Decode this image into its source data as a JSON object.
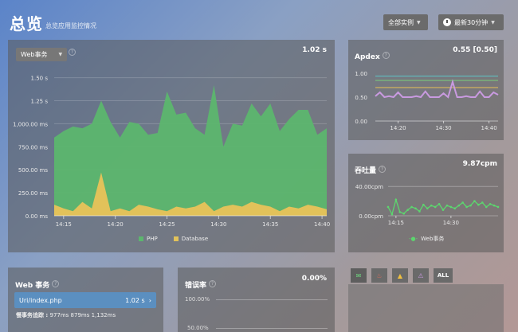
{
  "header": {
    "title": "总览",
    "subtitle": "总览应用监控情况",
    "instances_label": "全部实例",
    "time_label": "最新30分钟"
  },
  "web_chart": {
    "dropdown_label": "Web事务",
    "value": "1.02 s",
    "legend_php": "PHP",
    "legend_db": "Database"
  },
  "apdex": {
    "title": "Apdex",
    "value": "0.55 [0.50]"
  },
  "throughput": {
    "title": "吞吐量",
    "value": "9.87cpm",
    "legend": "Web事务"
  },
  "web_tx": {
    "title": "Web 事务",
    "row_label": "Uri/index.php",
    "row_value": "1.02 s",
    "trace_label": "慢事务追踪 :",
    "trace_values": "977ms 879ms 1,132ms"
  },
  "error_rate": {
    "title": "错误率",
    "value": "0.00%"
  },
  "tabs": {
    "all_label": "ALL"
  },
  "colors": {
    "php": "#5cb66e",
    "database": "#e2c25a",
    "apdex": "#c99ae0",
    "throughput": "#5cd66e"
  },
  "chart_data": [
    {
      "type": "area",
      "ylim": [
        0,
        1.6
      ],
      "yticks": [
        "1.50 s",
        "1.25 s",
        "1,000.00 ms",
        "750.00 ms",
        "500.00 ms",
        "250.00 ms",
        "0.00 ms"
      ],
      "ytick_values": [
        1.5,
        1.25,
        1.0,
        0.75,
        0.5,
        0.25,
        0
      ],
      "xticks": [
        "14:15",
        "14:20",
        "14:25",
        "14:30",
        "14:35",
        "14:40"
      ],
      "xtick_positions": [
        1,
        6.5,
        12,
        17.5,
        23,
        28.5
      ],
      "series": [
        {
          "name": "PHP",
          "values": [
            0.85,
            0.92,
            0.97,
            0.95,
            1.0,
            1.25,
            1.02,
            0.85,
            1.02,
            1.0,
            0.88,
            0.9,
            1.35,
            1.1,
            1.12,
            0.95,
            0.88,
            1.42,
            0.75,
            1.0,
            0.98,
            1.22,
            1.08,
            1.22,
            0.92,
            1.05,
            1.15,
            1.15,
            0.88,
            0.95
          ]
        },
        {
          "name": "Database",
          "values": [
            0.12,
            0.08,
            0.05,
            0.15,
            0.08,
            0.47,
            0.05,
            0.08,
            0.05,
            0.12,
            0.1,
            0.07,
            0.05,
            0.1,
            0.08,
            0.1,
            0.15,
            0.05,
            0.1,
            0.12,
            0.1,
            0.15,
            0.12,
            0.1,
            0.05,
            0.1,
            0.08,
            0.12,
            0.1,
            0.07
          ]
        }
      ]
    },
    {
      "type": "line",
      "title": "Apdex",
      "ylim": [
        0,
        1.2
      ],
      "yticks": [
        "1.00",
        "0.50",
        "0.00"
      ],
      "ytick_values": [
        1.0,
        0.5,
        0
      ],
      "xticks": [
        "14:20",
        "14:30",
        "14:40"
      ],
      "xtick_positions": [
        5,
        15,
        25
      ],
      "thresholds": [
        0.94,
        0.85,
        0.7
      ],
      "series": [
        {
          "name": "Apdex",
          "values": [
            0.52,
            0.6,
            0.5,
            0.52,
            0.5,
            0.6,
            0.5,
            0.5,
            0.5,
            0.52,
            0.5,
            0.62,
            0.5,
            0.5,
            0.5,
            0.58,
            0.5,
            0.82,
            0.5,
            0.5,
            0.52,
            0.5,
            0.5,
            0.62,
            0.5,
            0.5,
            0.6,
            0.55
          ]
        }
      ]
    },
    {
      "type": "line",
      "title": "吞吐量",
      "ylim": [
        0,
        50
      ],
      "yticks": [
        "40.00cpm",
        "0.00cpm"
      ],
      "ytick_values": [
        40,
        0
      ],
      "xticks": [
        "14:15",
        "14:30"
      ],
      "xtick_positions": [
        2,
        16
      ],
      "series": [
        {
          "name": "Web事务",
          "values": [
            12,
            2,
            22,
            5,
            3,
            8,
            12,
            10,
            6,
            15,
            10,
            14,
            12,
            16,
            8,
            14,
            12,
            10,
            14,
            18,
            12,
            14,
            20,
            15,
            18,
            12,
            16,
            14,
            12
          ]
        }
      ]
    }
  ]
}
